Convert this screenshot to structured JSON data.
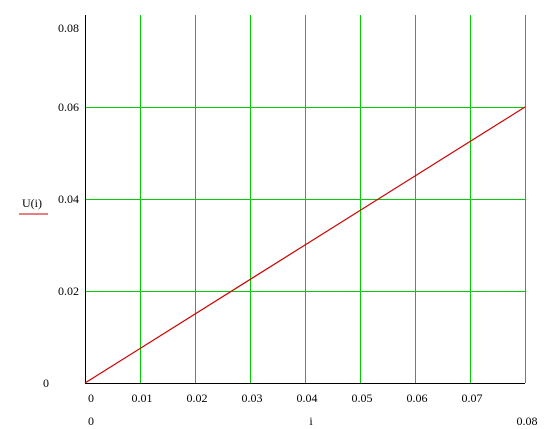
{
  "chart_data": {
    "type": "line",
    "title": "",
    "xlabel": "i",
    "ylabel": "U(i)",
    "xlim": [
      0,
      0.08
    ],
    "ylim": [
      0,
      0.08
    ],
    "x_ticks": [
      0,
      0.01,
      0.02,
      0.03,
      0.04,
      0.05,
      0.06,
      0.07,
      0.08
    ],
    "x_tick_labels": [
      "0",
      "0.01",
      "0.02",
      "0.03",
      "0.04",
      "0.05",
      "0.06",
      "0.07"
    ],
    "x_range_labels": {
      "min": "0",
      "max": "0.08"
    },
    "y_ticks": [
      0,
      0.02,
      0.04,
      0.06,
      0.08
    ],
    "y_tick_labels": [
      "0",
      "0.02",
      "0.04",
      "0.06",
      "0.08"
    ],
    "grid": true,
    "grid_color": "#00cc00",
    "series": [
      {
        "name": "U(i)",
        "color": "#cc0000",
        "x": [
          0,
          0.08
        ],
        "y": [
          0,
          0.06
        ]
      }
    ]
  }
}
